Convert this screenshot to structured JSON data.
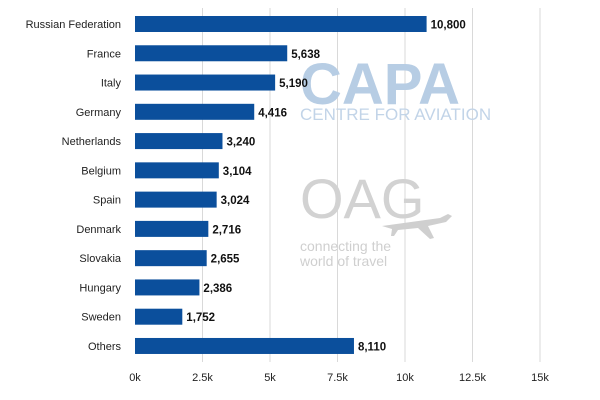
{
  "watermarks": {
    "capa_logo": "CAPA",
    "capa_subtitle": "CENTRE FOR AVIATION",
    "oag_logo": "OAG",
    "oag_tagline_line1": "connecting the",
    "oag_tagline_line2": "world of travel"
  },
  "chart_data": {
    "type": "bar",
    "orientation": "horizontal",
    "categories": [
      "Russian Federation",
      "France",
      "Italy",
      "Germany",
      "Netherlands",
      "Belgium",
      "Spain",
      "Denmark",
      "Slovakia",
      "Hungary",
      "Sweden",
      "Others"
    ],
    "values": [
      10800,
      5638,
      5190,
      4416,
      3240,
      3104,
      3024,
      2716,
      2655,
      2386,
      1752,
      8110
    ],
    "value_labels": [
      "10,800",
      "5,638",
      "5,190",
      "4,416",
      "3,240",
      "3,104",
      "3,024",
      "2,716",
      "2,655",
      "2,386",
      "1,752",
      "8,110"
    ],
    "x_ticks": [
      0,
      2500,
      5000,
      7500,
      10000,
      12500,
      15000
    ],
    "x_tick_labels": [
      "0k",
      "2.5k",
      "5k",
      "7.5k",
      "10k",
      "12.5k",
      "15k"
    ],
    "xlim": [
      0,
      15000
    ],
    "bar_color": "#0b4f9c",
    "grid": true,
    "legend": "none",
    "title": "",
    "xlabel": "",
    "ylabel": ""
  }
}
